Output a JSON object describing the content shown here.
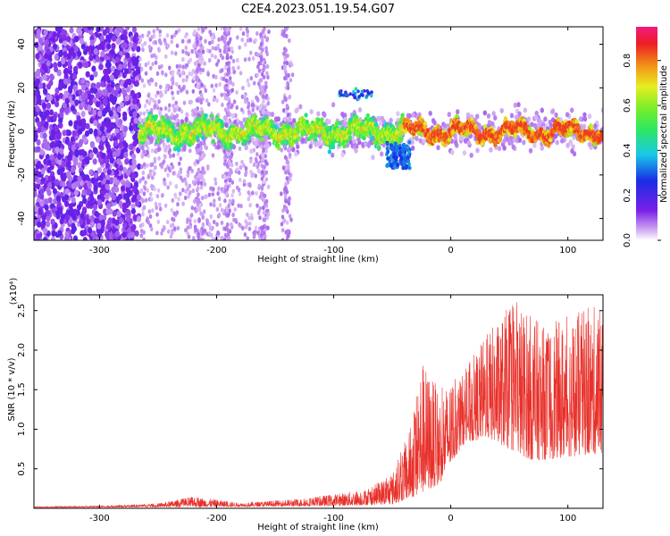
{
  "chart_data": [
    {
      "type": "heatmap",
      "title": "C2E4.2023.051.19.54.G07",
      "xlabel": "Height of straight line (km)",
      "ylabel": "Frequency (Hz)",
      "xlim": [
        -356,
        130
      ],
      "ylim": [
        -50,
        48
      ],
      "x_ticks": [
        -300,
        -200,
        -100,
        0,
        100
      ],
      "y_ticks": [
        -40,
        -20,
        0,
        20,
        40
      ],
      "colorbar": {
        "label": "Normalized spectral amplitude",
        "range": [
          0.0,
          0.95
        ],
        "ticks": [
          "0.0",
          "0.2",
          "0.4",
          "0.6",
          "0.8"
        ]
      },
      "features": [
        {
          "name": "noise band",
          "x_range": [
            -356,
            -266
          ],
          "y_range": [
            -50,
            48
          ]
        },
        {
          "name": "main ridge",
          "x_range": [
            -266,
            130
          ],
          "center_freq": 0,
          "peak_amplitude": 0.85
        },
        {
          "name": "secondary line",
          "x": -95,
          "freq": 17
        }
      ]
    },
    {
      "type": "line",
      "xlabel": "Height of straight line (km)",
      "ylabel": "SNR (10 * v/v)",
      "y_multiplier": "(x10⁴)",
      "xlim": [
        -356,
        130
      ],
      "ylim": [
        0,
        2.7
      ],
      "x_ticks": [
        -300,
        -200,
        -100,
        0,
        100
      ],
      "y_ticks": [
        "0.5",
        "1.0",
        "1.5",
        "2.0",
        "2.5"
      ],
      "color": "#e8302a",
      "envelope": [
        {
          "x": -356,
          "y": 0.02
        },
        {
          "x": -300,
          "y": 0.03
        },
        {
          "x": -250,
          "y": 0.06
        },
        {
          "x": -220,
          "y": 0.15
        },
        {
          "x": -180,
          "y": 0.07
        },
        {
          "x": -130,
          "y": 0.12
        },
        {
          "x": -100,
          "y": 0.18
        },
        {
          "x": -70,
          "y": 0.25
        },
        {
          "x": -50,
          "y": 0.45
        },
        {
          "x": -35,
          "y": 1.0
        },
        {
          "x": -25,
          "y": 1.9
        },
        {
          "x": -10,
          "y": 1.5
        },
        {
          "x": 10,
          "y": 1.7
        },
        {
          "x": 30,
          "y": 2.2
        },
        {
          "x": 55,
          "y": 2.65
        },
        {
          "x": 80,
          "y": 2.3
        },
        {
          "x": 110,
          "y": 2.5
        },
        {
          "x": 130,
          "y": 2.6
        }
      ],
      "baseline": [
        {
          "x": -356,
          "y": 0.01
        },
        {
          "x": -200,
          "y": 0.02
        },
        {
          "x": -100,
          "y": 0.03
        },
        {
          "x": -50,
          "y": 0.05
        },
        {
          "x": -30,
          "y": 0.15
        },
        {
          "x": -10,
          "y": 0.3
        },
        {
          "x": 10,
          "y": 0.8
        },
        {
          "x": 30,
          "y": 0.9
        },
        {
          "x": 70,
          "y": 0.6
        },
        {
          "x": 100,
          "y": 0.65
        },
        {
          "x": 130,
          "y": 0.7
        }
      ]
    }
  ]
}
